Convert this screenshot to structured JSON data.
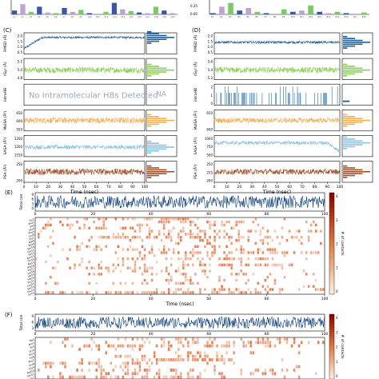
{
  "figure": {
    "panel_labels": [
      "(C)",
      "(D)",
      "(E)",
      "(F)"
    ],
    "na_text": "NA",
    "no_hbond_text": "No Intramolecular HBs Detected",
    "colorbar_label": "# of contacts",
    "colorbar_ticks": [
      "4",
      "3",
      "2",
      "1",
      "0"
    ],
    "colors": {
      "rmsd": "#1f5f99",
      "rgyr": "#8fce5a",
      "intrahb": "#1f6fa8",
      "molsa": "#f2b055",
      "sasa": "#8fc3e0",
      "psa": "#a0522d",
      "contacts_line": "#0b3c78",
      "heat": "#d9622b",
      "top_bar_blue": "#3a57a7",
      "top_bar_green": "#7cc96a",
      "top_bar_purple": "#b9a6d6"
    }
  },
  "chart_data": [
    {
      "type": "line",
      "panel": "(C)",
      "xlabel": "Time (nsec)",
      "xlim": [
        0,
        100
      ],
      "x_ticks": [
        0,
        10,
        20,
        30,
        40,
        50,
        60,
        70,
        80,
        90,
        100
      ],
      "series": [
        {
          "name": "RMSD (Å)",
          "ylabel": "RMSD (Å)",
          "yticks": [
            "2.0",
            "1.5",
            "1.0",
            "0.5"
          ],
          "baseline": 0.78,
          "level2": 0.25,
          "step_at": 0.15,
          "noise": 0.05
        },
        {
          "name": "rGyr (Å)",
          "ylabel": "rGyr (Å)",
          "yticks": [
            "5.2",
            "5.0",
            "4.8"
          ],
          "baseline": 0.45,
          "noise": 0.14
        },
        {
          "name": "intraHB",
          "ylabel": "intraHB",
          "yticks": [],
          "baseline": null,
          "noise": 0
        },
        {
          "name": "MolSA (Å²)",
          "ylabel": "MolSA (Å²)",
          "yticks": [
            "650",
            "600",
            "550"
          ],
          "baseline": 0.5,
          "noise": 0.14
        },
        {
          "name": "SASA (Å²)",
          "ylabel": "SASA (Å²)",
          "yticks": [
            "1250",
            "1200",
            "1150"
          ],
          "baseline": 0.45,
          "noise": 0.1
        },
        {
          "name": "PSA (Å²)",
          "ylabel": "PSA (Å²)",
          "yticks": [
            "250",
            "200"
          ],
          "baseline": 0.5,
          "noise": 0.15
        }
      ]
    },
    {
      "type": "line",
      "panel": "(D)",
      "xlabel": "Time (nsec)",
      "xlim": [
        0,
        100
      ],
      "x_ticks": [
        0,
        10,
        20,
        30,
        40,
        50,
        60,
        70,
        80,
        90,
        100
      ],
      "series": [
        {
          "name": "RMSD (Å)",
          "ylabel": "RMSD (Å)",
          "yticks": [
            "2.0",
            "1.5",
            "1.0",
            "0.5"
          ],
          "baseline": 0.55,
          "noise": 0.06
        },
        {
          "name": "rGyr (Å)",
          "ylabel": "rGyr (Å)",
          "yticks": [
            "5.6",
            "5.4",
            "5.2"
          ],
          "baseline": 0.45,
          "noise": 0.14
        },
        {
          "name": "intraHB",
          "ylabel": "intraHB",
          "yticks": [
            "2",
            "1",
            "0"
          ],
          "baseline": 0.0,
          "noise": 0
        },
        {
          "name": "MolSA (Å²)",
          "ylabel": "MolSA (Å²)",
          "yticks": [
            "650",
            "600"
          ],
          "baseline": 0.5,
          "noise": 0.12
        },
        {
          "name": "SASA (Å²)",
          "ylabel": "SASA (Å²)",
          "yticks": [
            "1000",
            "750",
            "500"
          ],
          "baseline": 0.65,
          "noise": 0.09
        },
        {
          "name": "PSA (Å²)",
          "ylabel": "PSA (Å²)",
          "yticks": [
            "250",
            "225",
            "200"
          ],
          "baseline": 0.5,
          "noise": 0.13
        }
      ]
    },
    {
      "type": "heatmap",
      "panel": "(E)",
      "xlabel": "Time (nsec)",
      "xlim": [
        0,
        100
      ],
      "x_ticks": [
        0,
        20,
        40,
        60,
        80,
        100
      ],
      "top_ylabel": "Total con",
      "top_yticks": [
        "9",
        "6",
        "3",
        "0"
      ],
      "residues": [
        "Tyr",
        "Phe",
        "Ile",
        "Glu",
        "Phe",
        "Leu",
        "Gly",
        "Asp",
        "Met",
        "Ser",
        "Gln",
        "Ile",
        "Asn",
        "Thr",
        "Ala",
        "Arg",
        "Trp",
        "Lys",
        "Val",
        "His",
        "Pro",
        "Leu",
        "Ser",
        "Glu",
        "Tyr"
      ]
    },
    {
      "type": "heatmap",
      "panel": "(F)",
      "xlabel": "Time (nsec)",
      "xlim": [
        0,
        100
      ],
      "x_ticks": [
        0,
        20,
        40,
        60,
        80,
        100
      ],
      "top_ylabel": "Total con",
      "top_yticks": [
        "9",
        "6",
        "3"
      ],
      "residues": [
        "Trp",
        "Asn",
        "Ile",
        "Lys",
        "Ser",
        "Tyr",
        "Phe",
        "Leu",
        "Gly",
        "Asp",
        "Gln",
        "Arg"
      ]
    },
    {
      "type": "bar",
      "panel": "top-left (partial)",
      "categories": [
        "A1",
        "A2",
        "A3",
        "A4",
        "A5",
        "A6",
        "A7",
        "A8",
        "A9",
        "A10",
        "A11",
        "A12",
        "A13",
        "A14",
        "A15",
        "A16",
        "A17",
        "A18",
        "A19",
        "A20"
      ],
      "values": [
        0.3,
        0.8,
        0.2,
        0.6,
        0.15,
        0.1,
        0.5,
        0.2,
        0.35,
        0.1,
        0.05,
        0.2,
        0.9,
        0.4,
        0.25,
        0.15,
        0.1,
        0.6,
        0.3,
        0.1
      ]
    },
    {
      "type": "bar",
      "panel": "top-right (partial)",
      "y_ticks": [
        "0.25",
        "0.00"
      ],
      "categories": [
        "B1",
        "B2",
        "B3",
        "B4",
        "B5",
        "B6",
        "B7",
        "B8",
        "B9",
        "B10",
        "B11",
        "B12",
        "B13",
        "B14",
        "B15",
        "B16",
        "B17",
        "B18"
      ],
      "values": [
        0.1,
        0.6,
        0.9,
        0.3,
        0.5,
        0.2,
        0.1,
        0.05,
        0.4,
        0.2,
        0.3,
        0.7,
        0.2,
        0.1,
        0.2,
        0.1,
        0.05,
        0.15
      ]
    }
  ]
}
